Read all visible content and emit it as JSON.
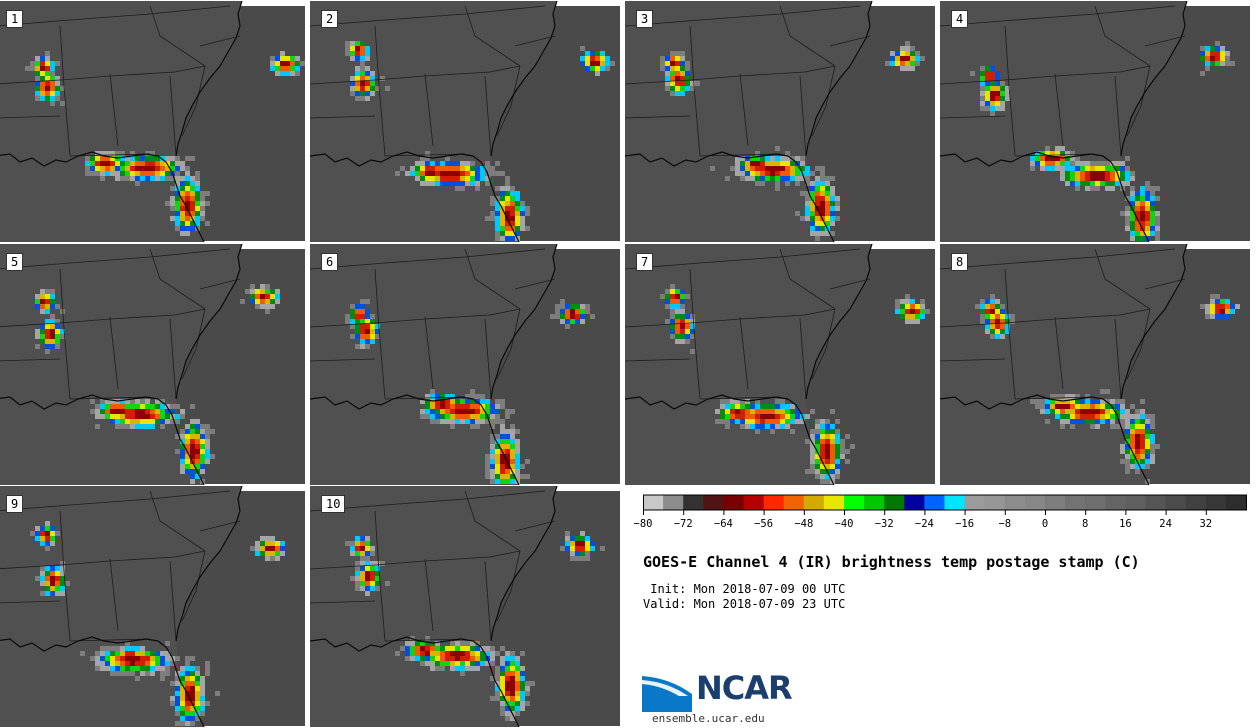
{
  "panels": [
    {
      "label": "1"
    },
    {
      "label": "2"
    },
    {
      "label": "3"
    },
    {
      "label": "4"
    },
    {
      "label": "5"
    },
    {
      "label": "6"
    },
    {
      "label": "7"
    },
    {
      "label": "8"
    },
    {
      "label": "9"
    },
    {
      "label": "10"
    }
  ],
  "colorbar": {
    "colors": [
      "#c8c8c8",
      "#8c8c8c",
      "#323232",
      "#501414",
      "#780000",
      "#b40000",
      "#ff2800",
      "#f06400",
      "#d2aa00",
      "#e6e600",
      "#00ff00",
      "#00c800",
      "#007800",
      "#0000a0",
      "#0064ff",
      "#00e6ff",
      "#9b9b9b",
      "#969696",
      "#8c8c8c",
      "#878787",
      "#7d7d7d",
      "#737373",
      "#6e6e6e",
      "#646464",
      "#5f5f5f",
      "#555555",
      "#4b4b4b",
      "#414141",
      "#373737",
      "#2d2d2d"
    ],
    "tick_labels": [
      "−80",
      "−72",
      "−64",
      "−56",
      "−48",
      "−40",
      "−32",
      "−24",
      "−16",
      "−8",
      "0",
      "8",
      "16",
      "24",
      "32"
    ]
  },
  "title": "GOES-E Channel 4 (IR) brightness temp postage stamp (C)",
  "init": " Init: Mon 2018-07-09 00 UTC",
  "valid": "Valid: Mon 2018-07-09 23 UTC",
  "logo": {
    "name": "NCAR",
    "url": "ensemble.ucar.edu"
  }
}
